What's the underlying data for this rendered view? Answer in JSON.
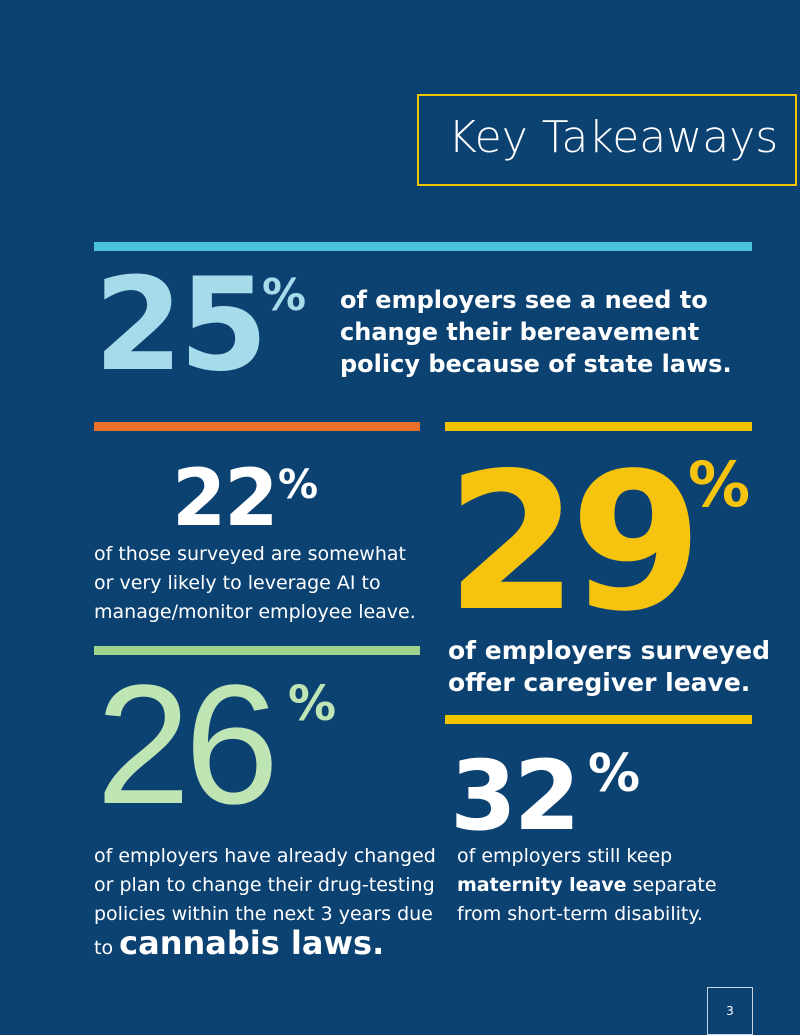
{
  "header": {
    "title": "Key Takeaways"
  },
  "stats": [
    {
      "number": "25",
      "unit": "%",
      "text": [
        "of employers see a need to",
        "change their bereavement",
        "policy because of state laws."
      ]
    },
    {
      "number": "22",
      "unit": "%",
      "text": [
        "of those surveyed are somewhat",
        "or very likely to leverage AI to",
        "manage/monitor employee leave."
      ]
    },
    {
      "number": "29",
      "unit": "%",
      "text": [
        "of employers surveyed",
        "offer caregiver leave."
      ]
    },
    {
      "number": "26",
      "unit": "%",
      "text": [
        "of employers have already changed",
        "or plan to change their drug-testing",
        "policies within the next 3 years due",
        "to"
      ],
      "emphasis": "cannabis laws."
    },
    {
      "number": "32",
      "unit": "%",
      "text": [
        "of employers still keep"
      ],
      "emphasis": "maternity leave",
      "after": " separate",
      "text2": [
        "from short-term disability."
      ]
    }
  ],
  "footer": {
    "page": "3"
  }
}
